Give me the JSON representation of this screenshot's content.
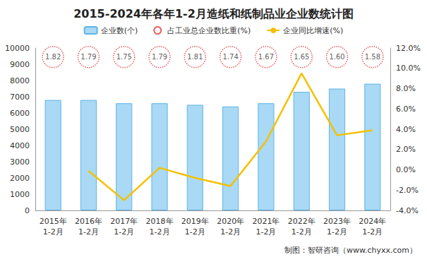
{
  "chart_data": {
    "type": "bar",
    "title": "2015-2024年各年1-2月造纸和纸制品业企业数统计图",
    "annotations": [
      "制图：智研咨询（www.chyxx.com）"
    ],
    "categories": [
      "2015年\n1-2月",
      "2016年\n1-2月",
      "2017年\n1-2月",
      "2018年\n1-2月",
      "2019年\n1-2月",
      "2020年\n1-2月",
      "2021年\n1-2月",
      "2022年\n1-2月",
      "2023年\n1-2月",
      "2024年\n1-2月"
    ],
    "series": [
      {
        "name": "企业数(个)",
        "type": "bar",
        "color": "#a9d9f5",
        "values": [
          6800,
          6800,
          6600,
          6600,
          6500,
          6400,
          6600,
          7300,
          7500,
          7800
        ]
      },
      {
        "name": "占工业总企业数比重(%)",
        "type": "scatter",
        "marker": "circle",
        "color": "#e23b3b",
        "data_labels": true,
        "values": [
          1.82,
          1.79,
          1.75,
          1.79,
          1.81,
          1.74,
          1.67,
          1.65,
          1.6,
          1.58
        ],
        "value_labels": [
          "1.82",
          "1.79",
          "1.75",
          "1.79",
          "1.81",
          "1.74",
          "1.67",
          "1.65",
          "1.60",
          "1.58"
        ]
      },
      {
        "name": "企业同比增速(%)",
        "type": "line",
        "axis": "y2",
        "marker": "none",
        "color": "#f5c000",
        "values": [
          null,
          -0.1,
          -3.0,
          0.2,
          -0.8,
          -1.6,
          2.8,
          9.5,
          3.4,
          3.9
        ]
      }
    ],
    "ylim": [
      0,
      10000
    ],
    "yticks": [
      0,
      1000,
      2000,
      3000,
      4000,
      5000,
      6000,
      7000,
      8000,
      9000,
      10000
    ],
    "y2lim": [
      -4,
      12
    ],
    "y2ticks": [
      {
        "value": -4,
        "label": "-4.0%"
      },
      {
        "value": -2,
        "label": "-2.0%"
      },
      {
        "value": 0,
        "label": "0.0%"
      },
      {
        "value": 2,
        "label": "2.0%"
      },
      {
        "value": 4,
        "label": "4.0%"
      },
      {
        "value": 6,
        "label": "6.0%"
      },
      {
        "value": 8,
        "label": "8.0%"
      },
      {
        "value": 10,
        "label": "10.0%"
      },
      {
        "value": 12,
        "label": "12.0%"
      }
    ],
    "legend": "top",
    "grid": false
  }
}
